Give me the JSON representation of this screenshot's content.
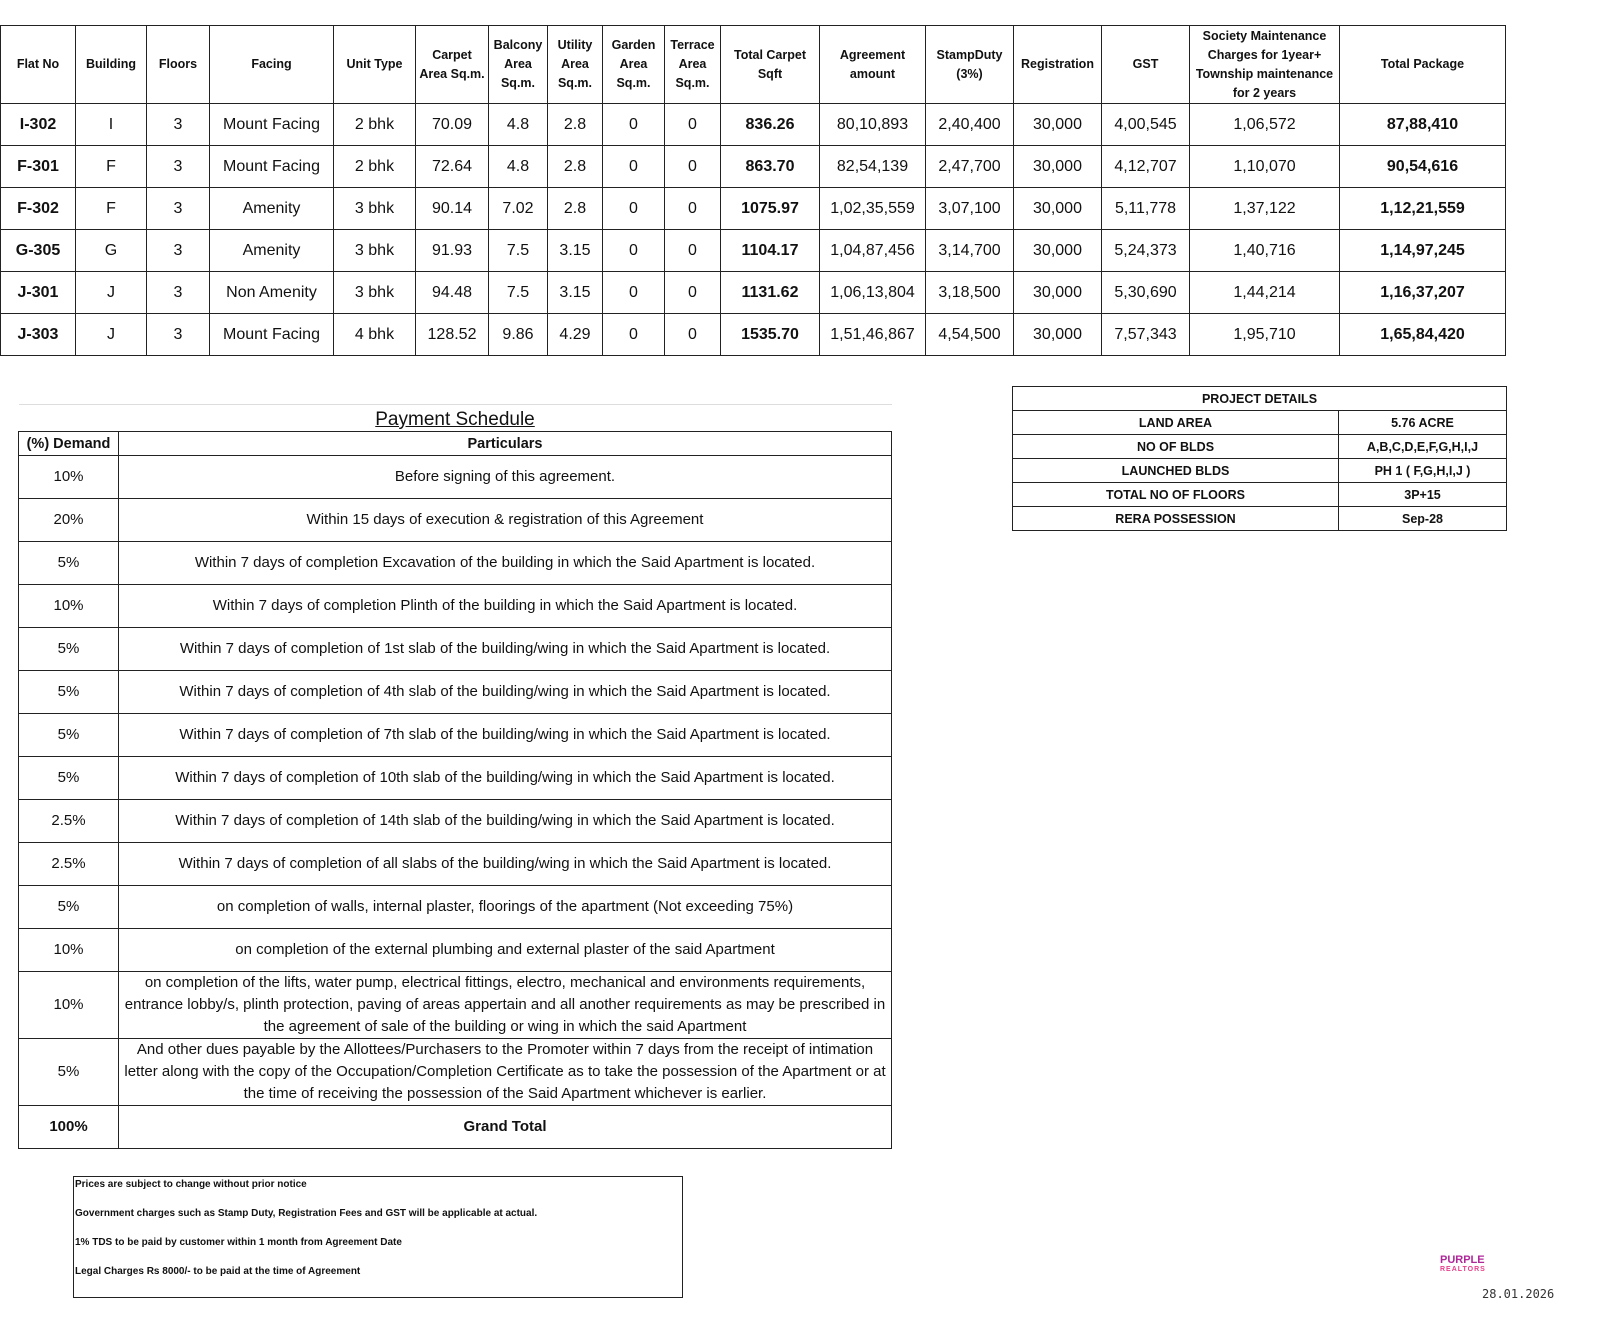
{
  "price_table": {
    "headers": [
      "Flat No",
      "Building",
      "Floors",
      "Facing",
      "Unit Type",
      "Carpet Area Sq.m.",
      "Balcony Area Sq.m.",
      "Utility Area Sq.m.",
      "Garden Area Sq.m.",
      "Terrace Area Sq.m.",
      "Total Carpet Sqft",
      "Agreement amount",
      "StampDuty (3%)",
      "Registration",
      "GST",
      "Society Maintenance Charges for 1year+ Township maintenance for 2 years",
      "Total Package"
    ],
    "rows": [
      [
        "I-302",
        "I",
        "3",
        "Mount Facing",
        "2 bhk",
        "70.09",
        "4.8",
        "2.8",
        "0",
        "0",
        "836.26",
        "80,10,893",
        "2,40,400",
        "30,000",
        "4,00,545",
        "1,06,572",
        "87,88,410"
      ],
      [
        "F-301",
        "F",
        "3",
        "Mount Facing",
        "2 bhk",
        "72.64",
        "4.8",
        "2.8",
        "0",
        "0",
        "863.70",
        "82,54,139",
        "2,47,700",
        "30,000",
        "4,12,707",
        "1,10,070",
        "90,54,616"
      ],
      [
        "F-302",
        "F",
        "3",
        "Amenity",
        "3 bhk",
        "90.14",
        "7.02",
        "2.8",
        "0",
        "0",
        "1075.97",
        "1,02,35,559",
        "3,07,100",
        "30,000",
        "5,11,778",
        "1,37,122",
        "1,12,21,559"
      ],
      [
        "G-305",
        "G",
        "3",
        "Amenity",
        "3 bhk",
        "91.93",
        "7.5",
        "3.15",
        "0",
        "0",
        "1104.17",
        "1,04,87,456",
        "3,14,700",
        "30,000",
        "5,24,373",
        "1,40,716",
        "1,14,97,245"
      ],
      [
        "J-301",
        "J",
        "3",
        "Non Amenity",
        "3 bhk",
        "94.48",
        "7.5",
        "3.15",
        "0",
        "0",
        "1131.62",
        "1,06,13,804",
        "3,18,500",
        "30,000",
        "5,30,690",
        "1,44,214",
        "1,16,37,207"
      ],
      [
        "J-303",
        "J",
        "3",
        "Mount Facing",
        "4 bhk",
        "128.52",
        "9.86",
        "4.29",
        "0",
        "0",
        "1535.70",
        "1,51,46,867",
        "4,54,500",
        "30,000",
        "7,57,343",
        "1,95,710",
        "1,65,84,420"
      ]
    ]
  },
  "payment_schedule": {
    "title": "Payment Schedule",
    "headers": [
      "(%) Demand",
      "Particulars"
    ],
    "rows": [
      [
        "10%",
        "Before signing of this agreement."
      ],
      [
        "20%",
        "Within 15 days of execution & registration of this Agreement"
      ],
      [
        "5%",
        "Within 7 days of completion Excavation of the building in which the Said Apartment is located."
      ],
      [
        "10%",
        "Within 7 days of completion Plinth of the building in which the Said Apartment is located."
      ],
      [
        "5%",
        "Within 7 days of completion of 1st slab of the building/wing in which the Said Apartment is located."
      ],
      [
        "5%",
        "Within 7 days of completion of 4th slab of the building/wing in which the Said Apartment is located."
      ],
      [
        "5%",
        "Within 7 days of completion of 7th slab of the building/wing in which the Said Apartment is located."
      ],
      [
        "5%",
        "Within 7 days of completion of 10th slab of the building/wing in which the Said Apartment is located."
      ],
      [
        "2.5%",
        "Within 7 days of completion of 14th slab of the building/wing in which the Said Apartment is located."
      ],
      [
        "2.5%",
        "Within 7 days of completion of all slabs of the building/wing in which the Said Apartment is located."
      ],
      [
        "5%",
        "on completion of walls, internal plaster, floorings of the apartment (Not exceeding 75%)"
      ],
      [
        "10%",
        "on completion of the external plumbing and external plaster of the said Apartment"
      ],
      [
        "10%",
        "on completion of the lifts, water pump, electrical fittings, electro, mechanical and environments requirements, entrance lobby/s, plinth protection, paving of areas appertain and all another requirements as may be prescribed in the agreement of sale of the building or wing in which the said Apartment"
      ],
      [
        "5%",
        "And other dues payable by the Allottees/Purchasers to the Promoter within 7 days from the receipt of intimation letter along with the copy of the Occupation/Completion Certificate as to take the possession of the Apartment or at the time of receiving the possession of the Said Apartment whichever is earlier."
      ]
    ],
    "total": [
      "100%",
      "Grand Total"
    ]
  },
  "project_details": {
    "title": "PROJECT DETAILS",
    "rows": [
      [
        "LAND AREA",
        "5.76 ACRE"
      ],
      [
        "NO OF BLDS",
        "A,B,C,D,E,F,G,H,I,J"
      ],
      [
        "LAUNCHED BLDS",
        "PH 1 ( F,G,H,I,J )"
      ],
      [
        "TOTAL NO OF FLOORS",
        "3P+15"
      ],
      [
        "RERA POSSESSION",
        "Sep-28"
      ]
    ]
  },
  "notes": [
    "Prices are subject to change without prior notice",
    "Government charges such as Stamp Duty, Registration Fees and GST will be applicable at actual.",
    "1% TDS to be paid by customer within 1 month from Agreement Date",
    "Legal Charges Rs 8000/- to be paid at the time of Agreement"
  ],
  "logo": {
    "line1": "PURPLE",
    "line2": "REALTORS"
  },
  "date": "28.01.2026"
}
